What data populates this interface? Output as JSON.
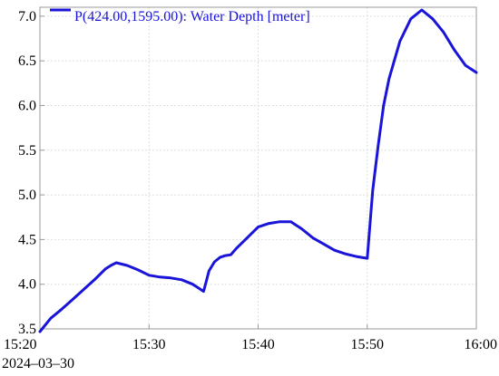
{
  "colors": {
    "series": "#1a14d8",
    "grid": "#d8e0d8",
    "axis": "#9a9a9a",
    "background": "#ffffff"
  },
  "chart_data": {
    "type": "line",
    "title": "",
    "xlabel": "",
    "ylabel": "",
    "date": "2024–03–30",
    "xlim": [
      "15:20",
      "16:00"
    ],
    "ylim": [
      3.5,
      7.1
    ],
    "x_ticks": [
      "15:20",
      "15:30",
      "15:40",
      "15:50",
      "16:00"
    ],
    "y_ticks": [
      "3.5",
      "4.0",
      "4.5",
      "5.0",
      "5.5",
      "6.0",
      "6.5",
      "7.0"
    ],
    "grid": true,
    "legend_position": "top-left",
    "series": [
      {
        "name": "P(424.00,1595.00): Water Depth [meter]",
        "x": [
          "15:20",
          "15:21",
          "15:22",
          "15:23",
          "15:24",
          "15:25",
          "15:26",
          "15:26:30",
          "15:27",
          "15:28",
          "15:29",
          "15:30",
          "15:31",
          "15:32",
          "15:33",
          "15:34",
          "15:34:30",
          "15:35",
          "15:35:30",
          "15:36",
          "15:36:30",
          "15:37",
          "15:37:30",
          "15:38",
          "15:39",
          "15:40",
          "15:41",
          "15:42",
          "15:43",
          "15:44",
          "15:45",
          "15:46",
          "15:47",
          "15:48",
          "15:49",
          "15:50",
          "15:50:30",
          "15:51",
          "15:51:30",
          "15:52",
          "15:53",
          "15:54",
          "15:55",
          "15:56",
          "15:57",
          "15:58",
          "15:59",
          "16:00"
        ],
        "y": [
          3.47,
          3.62,
          3.72,
          3.83,
          3.94,
          4.05,
          4.17,
          4.21,
          4.24,
          4.21,
          4.16,
          4.1,
          4.08,
          4.07,
          4.05,
          4.0,
          3.96,
          3.92,
          4.15,
          4.25,
          4.3,
          4.32,
          4.33,
          4.4,
          4.52,
          4.64,
          4.68,
          4.7,
          4.7,
          4.62,
          4.52,
          4.45,
          4.38,
          4.34,
          4.31,
          4.29,
          5.05,
          5.55,
          6.0,
          6.3,
          6.72,
          6.97,
          7.07,
          6.97,
          6.82,
          6.62,
          6.45,
          6.37
        ]
      }
    ]
  }
}
